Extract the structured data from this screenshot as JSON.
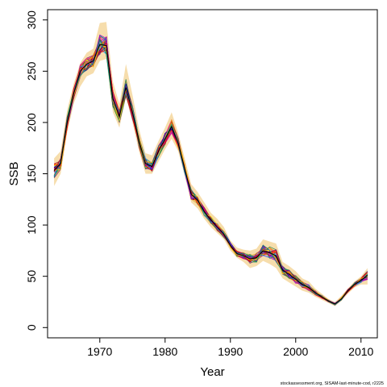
{
  "chart_data": {
    "type": "line",
    "xlabel": "Year",
    "ylabel": "SSB",
    "xlim": [
      1962,
      2012.5
    ],
    "ylim": [
      -10,
      310
    ],
    "xticks": [
      1970,
      1980,
      1990,
      2000,
      2010
    ],
    "yticks": [
      0,
      50,
      100,
      150,
      200,
      250,
      300
    ],
    "grid": false,
    "legend": "none",
    "colors": {
      "band": "#f3d290",
      "mean": "#000000",
      "palette": [
        "#e6007e",
        "#ff1493",
        "#c71585",
        "#8b0000",
        "#ff8c00",
        "#ffa500",
        "#daa520",
        "#228b22",
        "#2e8b57",
        "#1e90ff",
        "#4169e1",
        "#00008b",
        "#800080",
        "#9400d3",
        "#b22222",
        "#ff0000",
        "#ffd700",
        "#008b8b"
      ]
    },
    "x": [
      1963,
      1964,
      1965,
      1966,
      1967,
      1968,
      1969,
      1970,
      1971,
      1972,
      1973,
      1974,
      1975,
      1976,
      1977,
      1978,
      1979,
      1980,
      1981,
      1982,
      1983,
      1984,
      1985,
      1986,
      1987,
      1988,
      1989,
      1990,
      1991,
      1992,
      1993,
      1994,
      1995,
      1996,
      1997,
      1998,
      1999,
      2000,
      2001,
      2002,
      2003,
      2004,
      2005,
      2006,
      2007,
      2008,
      2009,
      2010,
      2011
    ],
    "band_upper": [
      165,
      172,
      212,
      238,
      258,
      268,
      272,
      297,
      298,
      240,
      218,
      257,
      227,
      194,
      170,
      168,
      182,
      195,
      210,
      190,
      165,
      140,
      132,
      122,
      112,
      106,
      98,
      85,
      78,
      76,
      75,
      77,
      86,
      84,
      82,
      64,
      60,
      55,
      48,
      45,
      38,
      33,
      28,
      25,
      31,
      38,
      45,
      50,
      58
    ],
    "band_lower": [
      138,
      150,
      190,
      218,
      235,
      245,
      248,
      260,
      262,
      210,
      195,
      225,
      200,
      172,
      150,
      150,
      162,
      174,
      184,
      172,
      148,
      122,
      116,
      106,
      98,
      92,
      86,
      75,
      68,
      64,
      58,
      60,
      65,
      62,
      58,
      48,
      44,
      40,
      36,
      34,
      30,
      27,
      24,
      21,
      26,
      33,
      39,
      42,
      42
    ],
    "series_mean": [
      153,
      160,
      200,
      228,
      250,
      257,
      260,
      276,
      275,
      223,
      206,
      234,
      210,
      182,
      160,
      157,
      172,
      184,
      196,
      180,
      155,
      130,
      124,
      113,
      105,
      98,
      91,
      80,
      72,
      70,
      67,
      68,
      75,
      73,
      70,
      56,
      52,
      47,
      42,
      39,
      34,
      30,
      26,
      23,
      28,
      36,
      42,
      46,
      51
    ]
  },
  "footnote": "stockassessment.org, SISAM-last-minute-cod, r2225"
}
